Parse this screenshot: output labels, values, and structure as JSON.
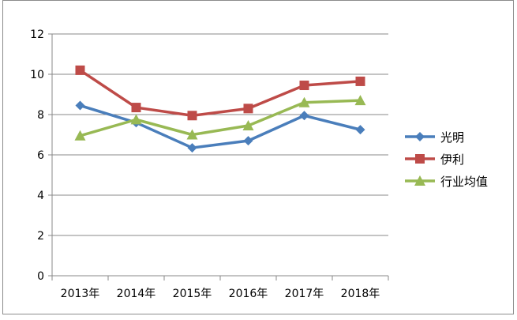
{
  "chart_data": {
    "type": "line",
    "title": "",
    "xlabel": "",
    "ylabel": "",
    "categories": [
      "2013年",
      "2014年",
      "2015年",
      "2016年",
      "2017年",
      "2018年"
    ],
    "ylim": [
      0,
      12
    ],
    "yticks": [
      0,
      2,
      4,
      6,
      8,
      10,
      12
    ],
    "grid": true,
    "legend_position": "right",
    "series": [
      {
        "name": "光明",
        "values": [
          8.45,
          7.6,
          6.35,
          6.7,
          7.95,
          7.25
        ],
        "color": "#4a7ebb",
        "marker": "diamond"
      },
      {
        "name": "伊利",
        "values": [
          10.2,
          8.35,
          7.95,
          8.3,
          9.45,
          9.65
        ],
        "color": "#be4b48",
        "marker": "square"
      },
      {
        "name": "行业均值",
        "values": [
          6.95,
          7.75,
          7.0,
          7.45,
          8.6,
          8.7
        ],
        "color": "#98b954",
        "marker": "triangle"
      }
    ]
  }
}
